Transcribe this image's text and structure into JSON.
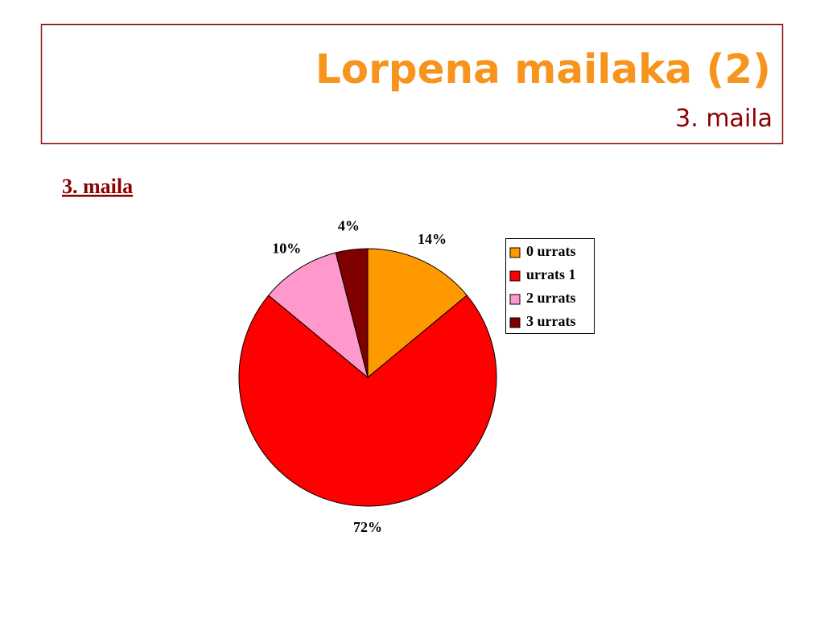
{
  "header": {
    "title": "Lorpena mailaka (2)",
    "subtitle": "3. maila"
  },
  "heading": "3. maila",
  "chart_data": {
    "type": "pie",
    "categories": [
      "0 urrats",
      "urrats 1",
      "2 urrats",
      "3 urrats"
    ],
    "values": [
      14,
      72,
      10,
      4
    ],
    "value_labels": [
      "14%",
      "72%",
      "10%",
      "4%"
    ],
    "colors": [
      "#ff9900",
      "#ff0000",
      "#ff99cc",
      "#800000"
    ],
    "legend": "right"
  }
}
